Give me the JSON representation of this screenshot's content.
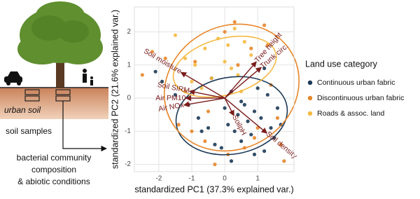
{
  "diagram": {
    "soil_label": "urban soil",
    "step1": "soil samples",
    "step2_lines": [
      "bacterial community",
      "composition",
      "& abiotic conditions"
    ]
  },
  "chart_data": {
    "type": "biplot",
    "xlabel": "standardized PC1 (37.3% explained var.)",
    "ylabel": "standardized PC2 (21.6% explained var.)",
    "xlim": [
      -2.74,
      2.1
    ],
    "ylim": [
      -2.22,
      2.75
    ],
    "xticks": [
      -2,
      -1,
      0,
      1
    ],
    "yticks": [
      -2,
      -1,
      0,
      1,
      2
    ],
    "grid": true,
    "legend_title": "Land use category",
    "legend_position": "right",
    "series": [
      {
        "name": "Continuous urban fabric",
        "color": "#1c3a57",
        "x": [
          -2.1,
          -1.9,
          -1.5,
          -1.1,
          -0.8,
          -0.5,
          -0.3,
          -0.1,
          0,
          0.1,
          0.2,
          0.3,
          0.4,
          0.5,
          0.6,
          0.7,
          0.8,
          0.9,
          1.0,
          1.1,
          1.2,
          1.3,
          1.4,
          1.5,
          1.6,
          1.7,
          -0.4,
          0.2,
          0.5,
          0.9,
          1.2,
          -0.7
        ],
        "y": [
          0.8,
          0.5,
          0.1,
          -0.2,
          -0.6,
          -0.9,
          -1.4,
          -1.5,
          -0.3,
          -0.8,
          -1.9,
          -1.0,
          -0.5,
          -1.3,
          -0.2,
          -0.7,
          -1.1,
          -0.4,
          0.3,
          -0.6,
          -1.6,
          0.1,
          -0.9,
          -1.2,
          -0.3,
          -0.8,
          0.6,
          0.2,
          -0.1,
          -1.7,
          0.9,
          -1.0
        ],
        "ellipse": {
          "cx": 0.21,
          "cy": -0.53,
          "rx": 1.7,
          "ry": 1.16,
          "angle": 10
        }
      },
      {
        "name": "Discontinuous urban fabric",
        "color": "#e8862a",
        "x": [
          -2.5,
          -2.2,
          -1.8,
          -1.4,
          -1.0,
          -0.6,
          -0.3,
          0.1,
          0.3,
          0.6,
          0.8,
          1.0,
          1.2,
          1.4,
          1.6,
          1.8,
          -1.2,
          -0.5,
          0.4,
          0.9,
          1.3,
          1.7,
          -0.9,
          0.0
        ],
        "y": [
          0.7,
          1.4,
          1.2,
          -0.8,
          -1.0,
          -1.3,
          -2.0,
          -1.7,
          2.3,
          -1.5,
          1.5,
          -0.9,
          2.2,
          0.4,
          -0.6,
          -1.9,
          0.2,
          -0.4,
          1.0,
          -1.2,
          1.6,
          -1.4,
          1.1,
          2.0
        ],
        "ellipse": {
          "cx": 0.21,
          "cy": 0.32,
          "rx": 2.1,
          "ry": 1.85,
          "angle": 30
        }
      },
      {
        "name": "Roads & assoc. land",
        "color": "#f5b942",
        "x": [
          -1.5,
          -1.2,
          -0.9,
          -0.6,
          -0.4,
          -0.2,
          0.0,
          0.2,
          0.4,
          0.6,
          0.8,
          -0.7,
          0.1,
          0.5,
          -1.0,
          0.3
        ],
        "y": [
          1.9,
          1.2,
          1.0,
          1.5,
          0.6,
          1.8,
          1.1,
          0.9,
          0.7,
          1.7,
          1.3,
          0.3,
          1.6,
          0.2,
          0.5,
          2.1
        ],
        "ellipse": {
          "cx": 0,
          "cy": 0.95,
          "rx": 1.6,
          "ry": 0.85,
          "angle": 15
        }
      }
    ],
    "loadings": {
      "color": "#7b1c1c",
      "labels": [
        "Soil moisture",
        "Tree height",
        "Trunk circ.",
        "Soil SIRM",
        "Air PM10",
        "Air NOx",
        "SoilpH",
        "Soil density"
      ],
      "x": [
        -1.33,
        0.96,
        1.11,
        -1.07,
        -1.18,
        -1.24,
        0.28,
        1.28
      ],
      "y": [
        0.78,
        1.1,
        0.93,
        0.21,
        0.0,
        -0.21,
        -0.53,
        -1.06
      ]
    }
  }
}
